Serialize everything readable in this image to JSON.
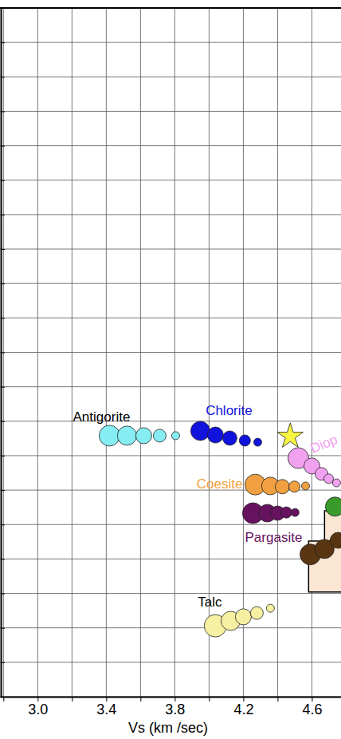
{
  "chart_data": {
    "type": "scatter",
    "x_label": "Vs (km /sec)",
    "xlim": [
      2.78,
      4.77
    ],
    "xticks": [
      {
        "value": 2.8,
        "label": null
      },
      {
        "value": 3.0,
        "label": "3.0"
      },
      {
        "value": 3.2,
        "label": null
      },
      {
        "value": 3.4,
        "label": "3.4"
      },
      {
        "value": 3.6,
        "label": null
      },
      {
        "value": 3.8,
        "label": "3.8"
      },
      {
        "value": 4.0,
        "label": null
      },
      {
        "value": 4.2,
        "label": "4.2"
      },
      {
        "value": 4.4,
        "label": null
      },
      {
        "value": 4.6,
        "label": "4.6"
      }
    ],
    "ylim": [
      0,
      20
    ],
    "yticks": [
      0,
      1,
      2,
      3,
      4,
      5,
      6,
      7,
      8,
      9,
      10,
      11,
      12,
      13,
      14,
      15,
      16,
      17,
      18,
      19,
      20
    ],
    "grid": true,
    "tick_labels": "x",
    "boxes": [
      {
        "color": "#fbe6d3",
        "x": [
          4.674,
          4.9
        ],
        "y": [
          4.52,
          5.4
        ]
      },
      {
        "color": "#fbe6d3",
        "x": [
          4.581,
          4.9
        ],
        "y": [
          3.04,
          4.52
        ]
      }
    ],
    "series": [
      {
        "name": "Antigorite",
        "color": "#86eef2",
        "marker": "circle",
        "x": [
          3.419,
          3.521,
          3.619,
          3.712,
          3.805
        ],
        "values": [
          7.58,
          7.58,
          7.58,
          7.58,
          7.58
        ],
        "sizes": [
          13,
          12,
          10,
          8,
          5
        ]
      },
      {
        "name": "Chlorite",
        "color": "#1212dd",
        "marker": "circle",
        "x": [
          3.949,
          4.037,
          4.121,
          4.209,
          4.284
        ],
        "values": [
          7.72,
          7.6,
          7.51,
          7.44,
          7.39
        ],
        "sizes": [
          12,
          10,
          9,
          7,
          5
        ]
      },
      {
        "name": "Diop",
        "color": "#f2a0f0",
        "marker": "circle",
        "x": [
          4.521,
          4.6,
          4.656,
          4.698,
          4.744
        ],
        "values": [
          6.93,
          6.7,
          6.47,
          6.33,
          6.21
        ],
        "sizes": [
          13,
          10,
          8,
          6,
          5
        ]
      },
      {
        "name": "Coesite",
        "color": "#f0a040",
        "marker": "circle",
        "x": [
          4.27,
          4.358,
          4.428,
          4.498,
          4.563
        ],
        "values": [
          6.16,
          6.12,
          6.1,
          6.1,
          6.12
        ],
        "sizes": [
          13,
          11,
          9,
          7,
          5
        ]
      },
      {
        "name": "Pargasite",
        "color": "#66125e",
        "marker": "circle",
        "x": [
          4.256,
          4.34,
          4.4,
          4.451,
          4.502
        ],
        "values": [
          5.33,
          5.33,
          5.33,
          5.35,
          5.35
        ],
        "sizes": [
          13,
          11,
          9,
          7,
          5
        ]
      },
      {
        "name": "Talc",
        "color": "#f7f0a2",
        "marker": "circle",
        "x": [
          4.037,
          4.126,
          4.2,
          4.279,
          4.358
        ],
        "values": [
          2.06,
          2.2,
          2.32,
          2.43,
          2.57
        ],
        "sizes": [
          14,
          12,
          10,
          8,
          5
        ]
      },
      {
        "color": "#3a9a2a",
        "marker": "circle",
        "x": [
          4.735
        ],
        "values": [
          5.52
        ],
        "sizes": [
          12
        ]
      },
      {
        "color": "#5a3512",
        "marker": "circle",
        "x": [
          4.591,
          4.674,
          4.753
        ],
        "values": [
          4.13,
          4.29,
          4.54
        ],
        "sizes": [
          13,
          12,
          10
        ]
      },
      {
        "color": "#f5f542",
        "marker": "star",
        "x": [
          4.474
        ],
        "values": [
          7.56
        ],
        "sizes": [
          8
        ]
      }
    ]
  }
}
